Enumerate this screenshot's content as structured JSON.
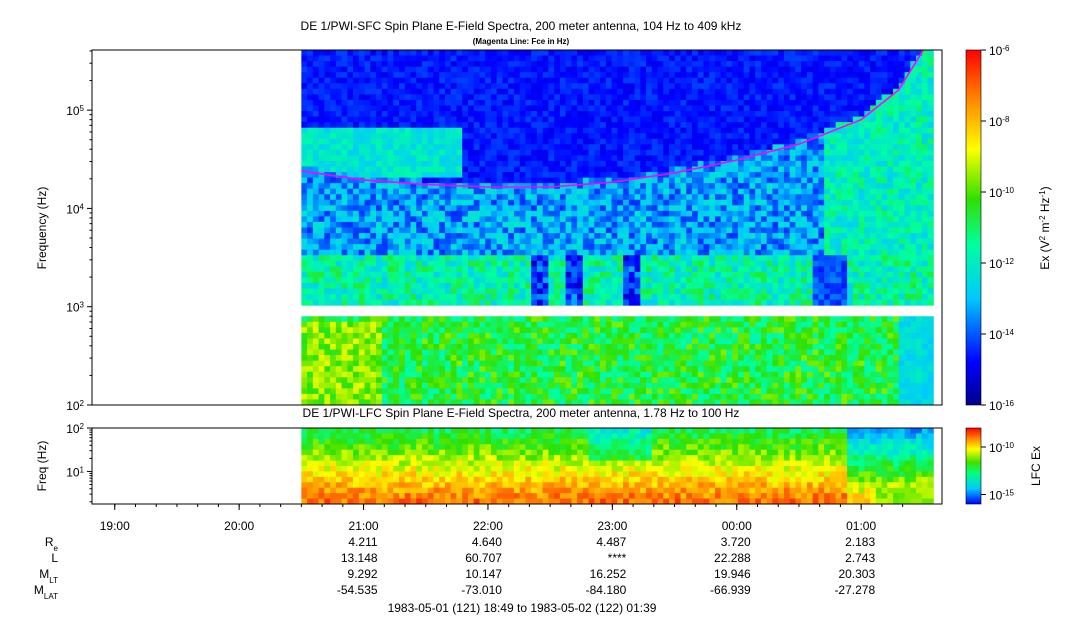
{
  "chart_data": [
    {
      "type": "heatmap",
      "title": "DE 1/PWI-SFC  Spin Plane E-Field Spectra, 200 meter antenna, 104 Hz to 409 kHz",
      "subtitle": "(Magenta Line: Fce in Hz)",
      "ylabel": "Frequency (Hz)",
      "yscale": "log",
      "ylim": [
        100,
        409000
      ],
      "ytick_values": [
        100,
        1000,
        10000,
        100000
      ],
      "ytick_labels": [
        {
          "b": "10",
          "e": "2"
        },
        {
          "b": "10",
          "e": "3"
        },
        {
          "b": "10",
          "e": "4"
        },
        {
          "b": "10",
          "e": "5"
        }
      ],
      "xlim_hours": [
        18.817,
        25.65
      ],
      "data_start_hours": 20.5,
      "data_end_hours": 25.58,
      "gap_hz": [
        850,
        1050
      ],
      "colorbar": {
        "label": {
          "pre": "Ex (V",
          "e1": "2",
          "mid": " m",
          "e2": "-2",
          "mid2": " Hz",
          "e3": "-1",
          "post": ")"
        },
        "scale": "log",
        "range": [
          1e-16,
          1e-06
        ],
        "ticks": [
          {
            "b": "10",
            "e": "-6"
          },
          {
            "b": "10",
            "e": "-8"
          },
          {
            "b": "10",
            "e": "-10"
          },
          {
            "b": "10",
            "e": "-12"
          },
          {
            "b": "10",
            "e": "-14"
          },
          {
            "b": "10",
            "e": "-16"
          }
        ]
      },
      "fce_line": {
        "color": "#ff00ff",
        "points_hours_hz": [
          [
            20.5,
            24000
          ],
          [
            21.0,
            19500
          ],
          [
            21.5,
            17500
          ],
          [
            22.0,
            16500
          ],
          [
            22.5,
            16500
          ],
          [
            23.0,
            18500
          ],
          [
            23.5,
            23000
          ],
          [
            24.0,
            31000
          ],
          [
            24.5,
            45000
          ],
          [
            25.0,
            80000
          ],
          [
            25.3,
            160000
          ],
          [
            25.42,
            280000
          ],
          [
            25.5,
            409000
          ]
        ]
      }
    },
    {
      "type": "heatmap",
      "title": "DE 1/PWI-LFC  Spin Plane E-Field Spectra, 200 meter antenna, 1.78 Hz to 100 Hz",
      "ylabel": "Freq (Hz)",
      "yscale": "log",
      "ylim": [
        1.78,
        100
      ],
      "ytick_labels": [
        {
          "b": "10",
          "e": "1"
        },
        {
          "b": "10",
          "e": "2"
        }
      ],
      "colorbar": {
        "label": "LFC Ex",
        "scale": "log",
        "range": [
          1e-16,
          1e-08
        ],
        "ticks": [
          {
            "b": "10",
            "e": "-10"
          },
          {
            "b": "10",
            "e": "-15"
          }
        ]
      }
    }
  ],
  "x_axis": {
    "tick_labels": [
      "19:00",
      "20:00",
      "21:00",
      "22:00",
      "23:00",
      "00:00",
      "01:00"
    ],
    "ephemeris_labels": [
      {
        "main": "R",
        "sub": "e"
      },
      {
        "main": "L",
        "sub": ""
      },
      {
        "main": "M",
        "sub": "LT"
      },
      {
        "main": "M",
        "sub": "LAT"
      }
    ],
    "ephemeris_rows": [
      [
        "4.211",
        "4.640",
        "4.487",
        "3.720",
        "2.183"
      ],
      [
        "13.148",
        "60.707",
        "****",
        "22.288",
        "2.743"
      ],
      [
        "9.292",
        "10.147",
        "16.252",
        "19.946",
        "20.303"
      ],
      [
        "-54.535",
        "-73.010",
        "-84.180",
        "-66.939",
        "-27.278"
      ]
    ],
    "time_range": "1983-05-01 (121) 18:49 to 1983-05-02 (122) 01:39"
  }
}
